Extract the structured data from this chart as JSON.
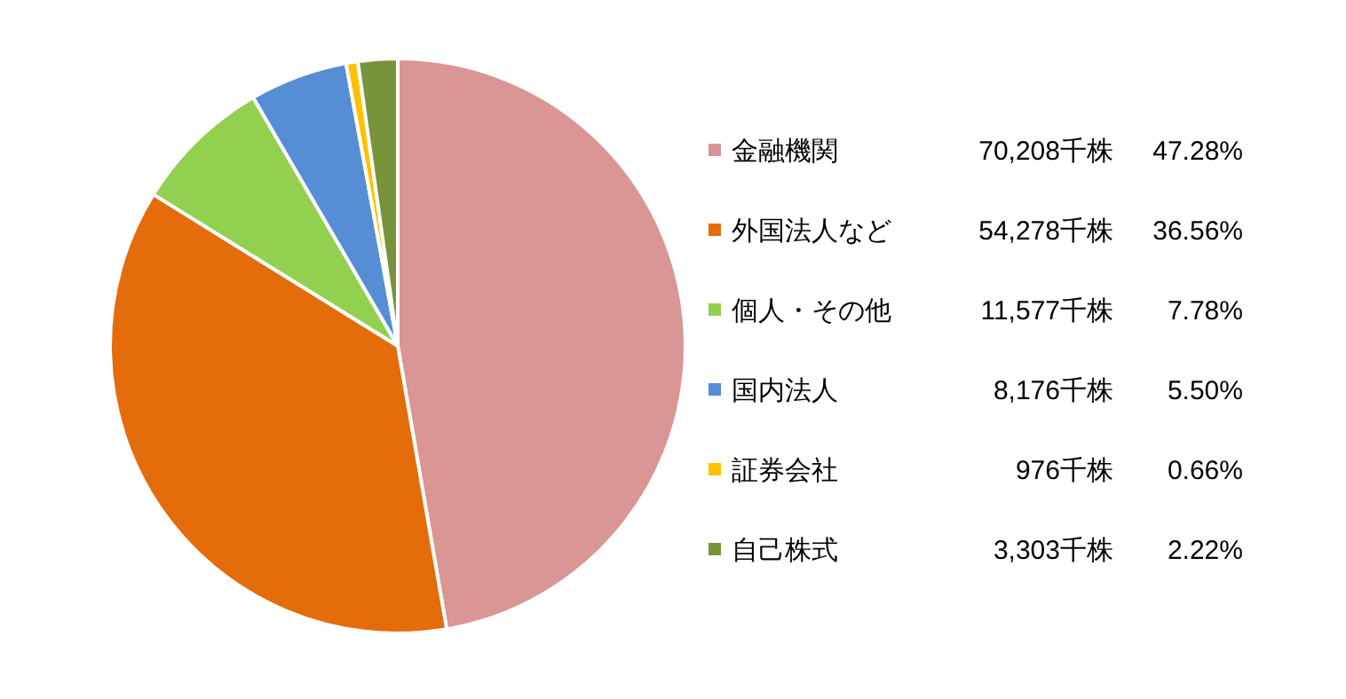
{
  "chart_data": {
    "type": "pie",
    "categories": [
      "金融機関",
      "外国法人など",
      "個人・その他",
      "国内法人",
      "証券会社",
      "自己株式"
    ],
    "values": [
      47.28,
      36.56,
      7.78,
      5.5,
      0.66,
      2.22
    ],
    "value_labels": [
      "70,208千株 47.28%",
      "54,278千株 36.56%",
      "11,577千株 7.78%",
      "8,176千株 5.50%",
      "976千株 0.66%",
      "3,303千株 2.22%"
    ],
    "colors": [
      "#d99694",
      "#e46c0a",
      "#92d050",
      "#558ed5",
      "#ffc000",
      "#77933c"
    ],
    "legend": "right"
  }
}
